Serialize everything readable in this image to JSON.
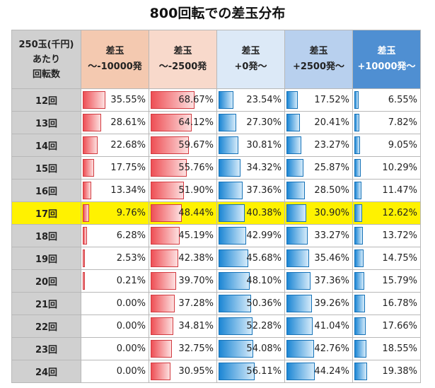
{
  "chart_data": {
    "type": "table",
    "title": "800回転での差玉分布",
    "row_header_lines": [
      "250玉(千円)",
      "あたり",
      "回転数"
    ],
    "columns": [
      {
        "lines": [
          "差玉",
          "～-10000発"
        ],
        "color": "#f4c9b0"
      },
      {
        "lines": [
          "差玉",
          "～-2500発"
        ],
        "color": "#f8d9cb"
      },
      {
        "lines": [
          "差玉",
          "+0発～"
        ],
        "color": "#dce9f7"
      },
      {
        "lines": [
          "差玉",
          "+2500発～"
        ],
        "color": "#b8d0ee"
      },
      {
        "lines": [
          "差玉",
          "+10000発～"
        ],
        "color": "#4f8fd2"
      }
    ],
    "highlight_row": "17回",
    "highlight_color": "#fff200",
    "rows": [
      {
        "label": "12回",
        "values": [
          35.55,
          68.67,
          23.54,
          17.52,
          6.55
        ]
      },
      {
        "label": "13回",
        "values": [
          28.61,
          64.12,
          27.3,
          20.41,
          7.82
        ]
      },
      {
        "label": "14回",
        "values": [
          22.68,
          59.67,
          30.81,
          23.27,
          9.05
        ]
      },
      {
        "label": "15回",
        "values": [
          17.75,
          55.76,
          34.32,
          25.87,
          10.29
        ]
      },
      {
        "label": "16回",
        "values": [
          13.34,
          51.9,
          37.36,
          28.5,
          11.47
        ]
      },
      {
        "label": "17回",
        "values": [
          9.76,
          48.44,
          40.38,
          30.9,
          12.62
        ]
      },
      {
        "label": "18回",
        "values": [
          6.28,
          45.19,
          42.99,
          33.27,
          13.72
        ]
      },
      {
        "label": "19回",
        "values": [
          2.53,
          42.38,
          45.68,
          35.46,
          14.75
        ]
      },
      {
        "label": "20回",
        "values": [
          0.21,
          39.7,
          48.1,
          37.36,
          15.79
        ]
      },
      {
        "label": "21回",
        "values": [
          0.0,
          37.28,
          50.36,
          39.26,
          16.78
        ]
      },
      {
        "label": "22回",
        "values": [
          0.0,
          34.81,
          52.28,
          41.04,
          17.66
        ]
      },
      {
        "label": "23回",
        "values": [
          0.0,
          32.75,
          54.08,
          42.76,
          18.55
        ]
      },
      {
        "label": "24回",
        "values": [
          0.0,
          30.95,
          56.11,
          44.24,
          19.38
        ]
      }
    ]
  }
}
